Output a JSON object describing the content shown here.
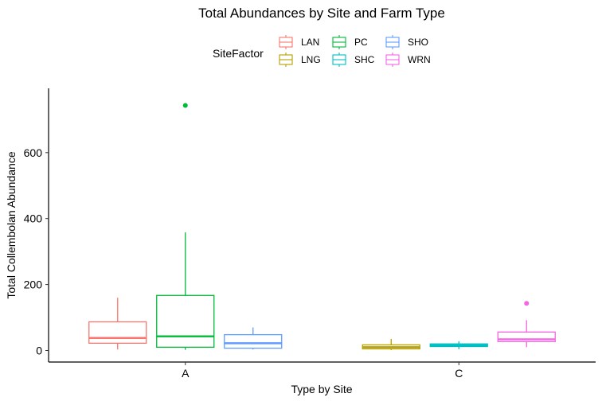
{
  "chart_data": {
    "type": "box",
    "title": "Total Abundances by Site and Farm Type",
    "xlabel": "Type by Site",
    "ylabel": "Total Collembolan Abundance",
    "categories": [
      "A",
      "C"
    ],
    "ylim": [
      -35,
      795
    ],
    "yticks": [
      0,
      200,
      400,
      600
    ],
    "grid": false,
    "legend": {
      "title": "SiteFactor",
      "position": "top",
      "entries": [
        {
          "name": "LAN",
          "color": "#F8766D"
        },
        {
          "name": "LNG",
          "color": "#B79F00"
        },
        {
          "name": "PC",
          "color": "#00BA38"
        },
        {
          "name": "SHC",
          "color": "#00BFC4"
        },
        {
          "name": "SHO",
          "color": "#619CFF"
        },
        {
          "name": "WRN",
          "color": "#F564E3"
        }
      ]
    },
    "boxes": [
      {
        "series": "LAN",
        "category": "A",
        "slot": 0,
        "color": "#F8766D",
        "min": 3,
        "q1": 22,
        "median": 38,
        "q3": 87,
        "max": 160,
        "outliers": []
      },
      {
        "series": "PC",
        "category": "A",
        "slot": 1,
        "color": "#00BA38",
        "min": 2,
        "q1": 10,
        "median": 43,
        "q3": 167,
        "max": 358,
        "outliers": [
          743
        ]
      },
      {
        "series": "SHO",
        "category": "A",
        "slot": 2,
        "color": "#619CFF",
        "min": 3,
        "q1": 7,
        "median": 22,
        "q3": 48,
        "max": 70,
        "outliers": []
      },
      {
        "series": "LNG",
        "category": "C",
        "slot": 0,
        "color": "#B79F00",
        "min": 1,
        "q1": 5,
        "median": 10,
        "q3": 17,
        "max": 35,
        "outliers": []
      },
      {
        "series": "SHC",
        "category": "C",
        "slot": 1,
        "color": "#00BFC4",
        "min": 4,
        "q1": 12,
        "median": 16,
        "q3": 20,
        "max": 28,
        "outliers": []
      },
      {
        "series": "WRN",
        "category": "C",
        "slot": 2,
        "color": "#F564E3",
        "min": 10,
        "q1": 27,
        "median": 34,
        "q3": 56,
        "max": 92,
        "outliers": [
          143
        ]
      }
    ]
  }
}
